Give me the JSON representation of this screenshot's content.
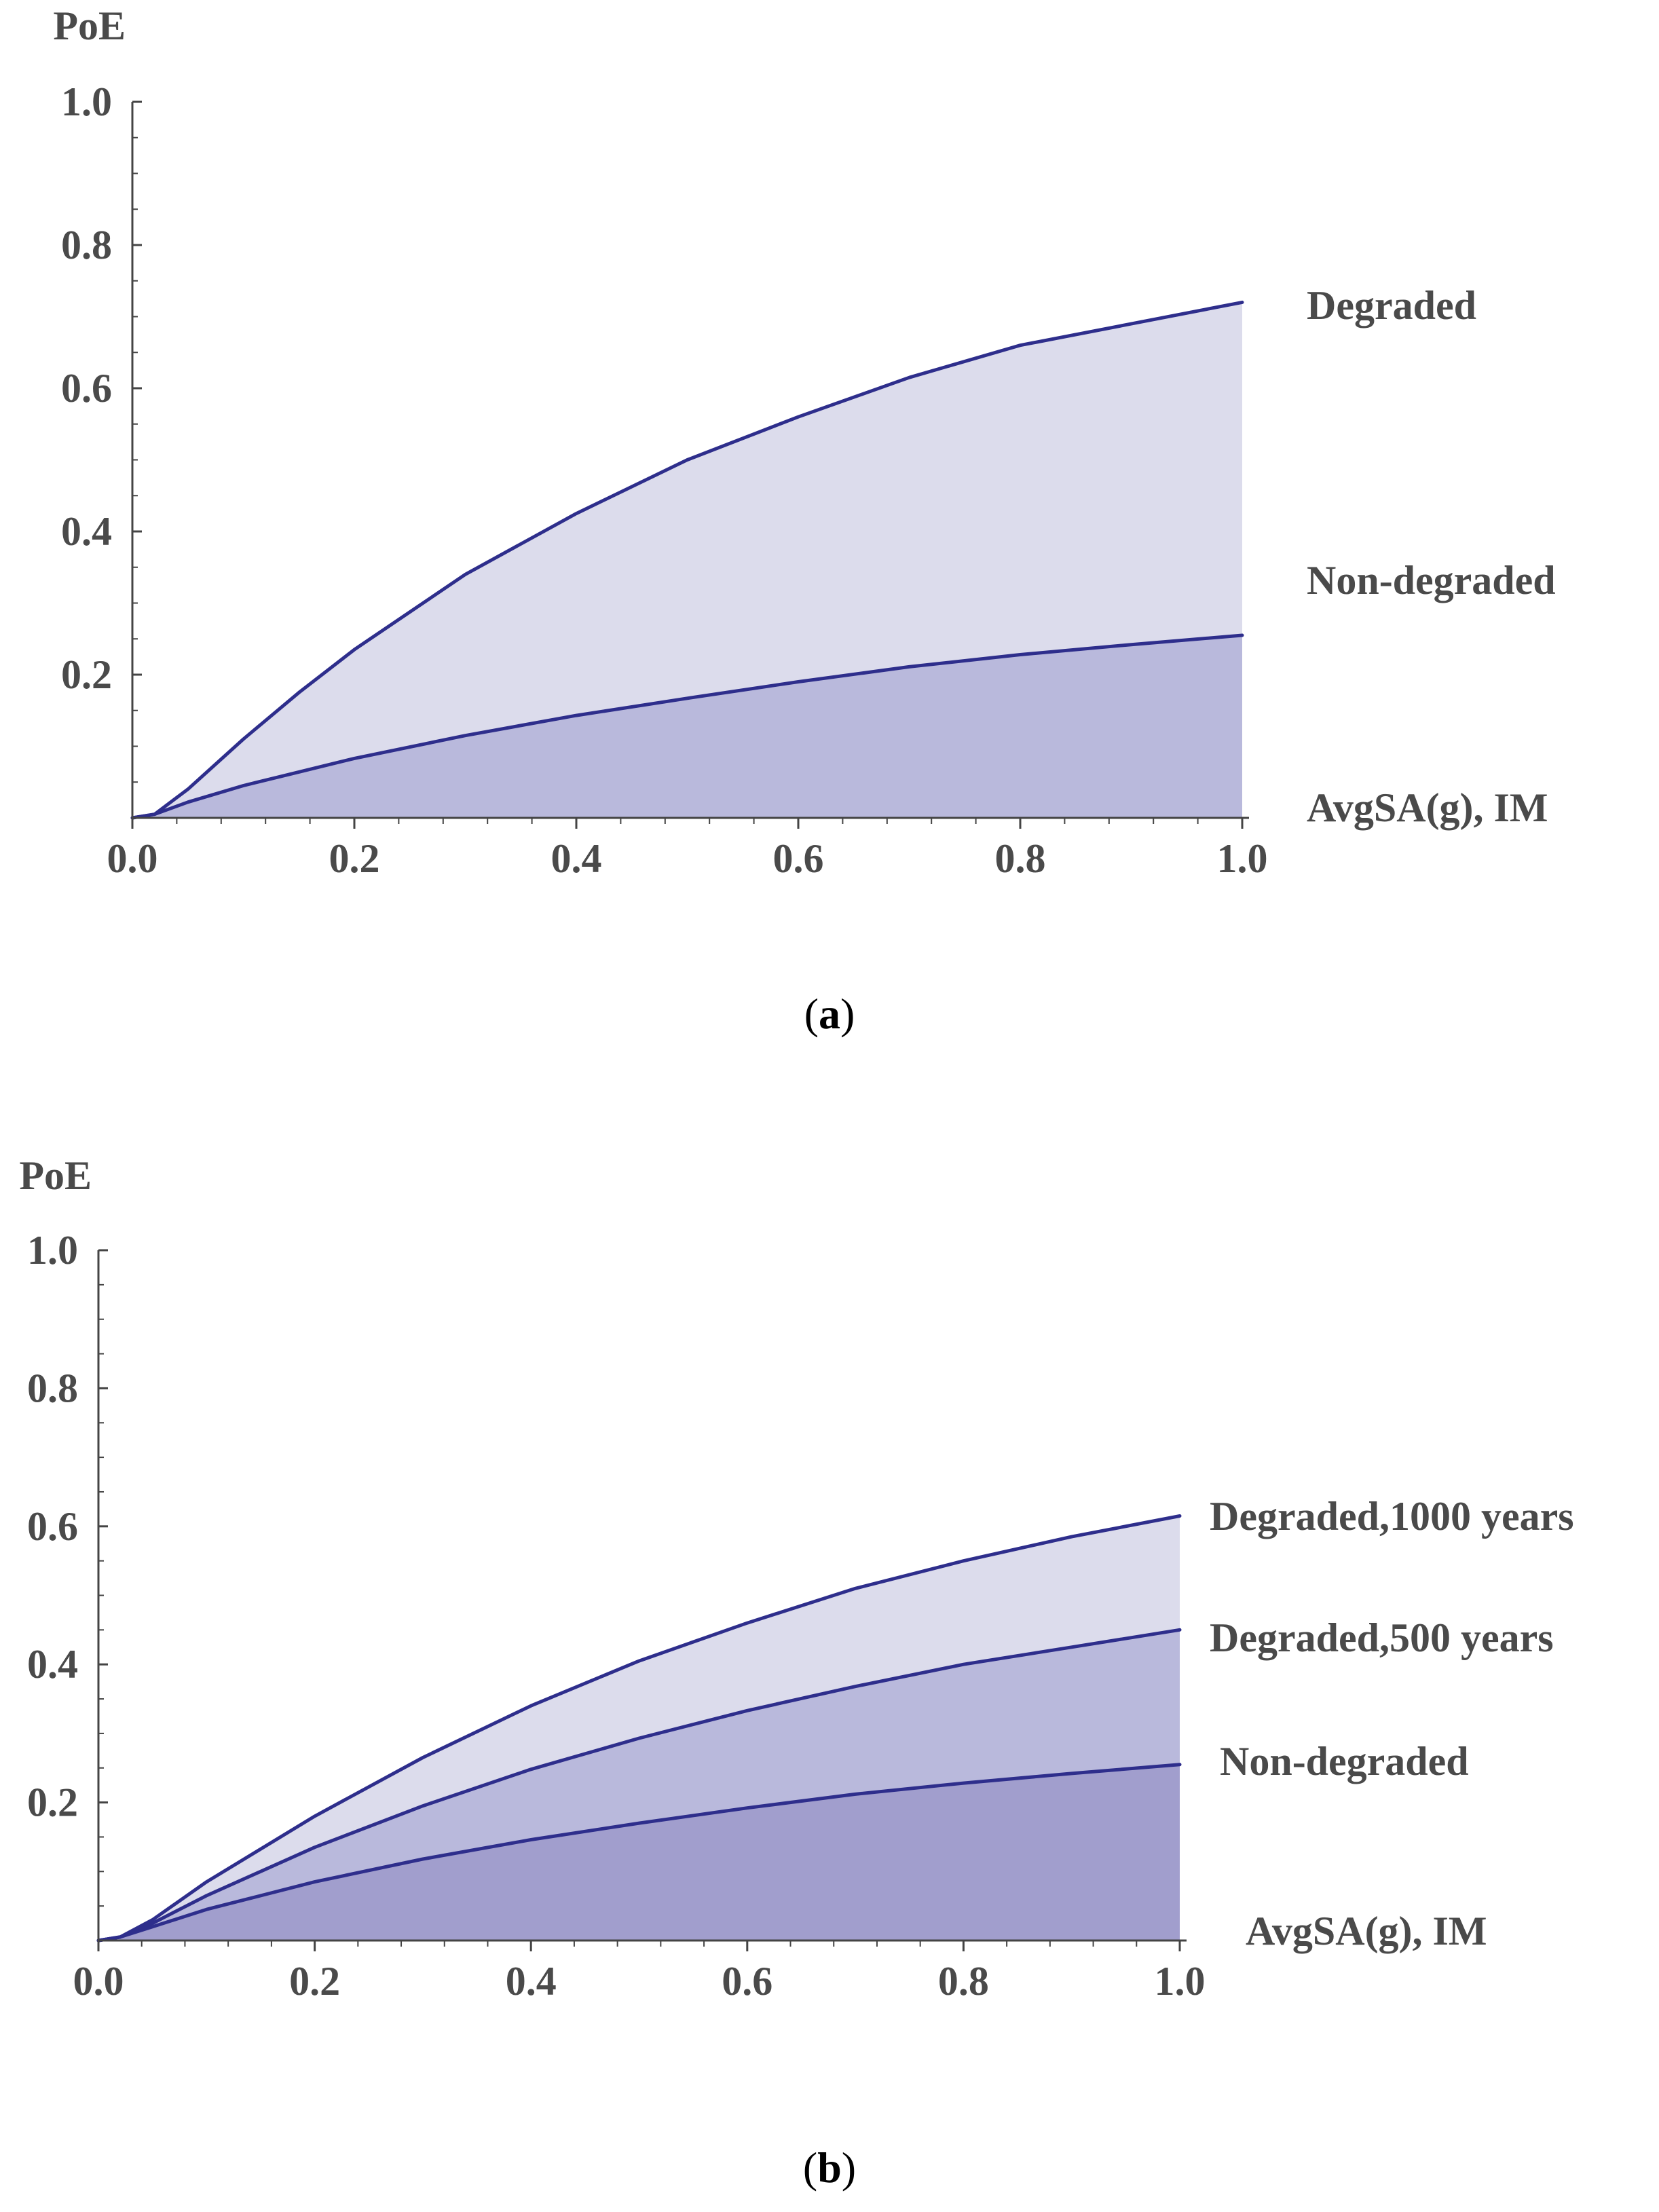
{
  "colors": {
    "line": "#2e2e8c",
    "fill_light": "#dcdcec",
    "fill_mid": "#b9b9dc",
    "fill_dark": "#a19ecd",
    "text": "#4a4a4a"
  },
  "chart_data": [
    {
      "id": "a",
      "type": "area",
      "caption": "(a)",
      "caption_letter": "a",
      "xlabel": "AvgSA(g), IM",
      "ylabel": "PoE",
      "xlim": [
        0.0,
        1.0
      ],
      "ylim": [
        0.0,
        1.0
      ],
      "xticks": [
        "0.0",
        "0.2",
        "0.4",
        "0.6",
        "0.8",
        "1.0"
      ],
      "yticks": [
        "0.2",
        "0.4",
        "0.6",
        "0.8",
        "1.0"
      ],
      "series": [
        {
          "name": "Degraded",
          "x": [
            0.0,
            0.02,
            0.05,
            0.1,
            0.15,
            0.2,
            0.3,
            0.4,
            0.5,
            0.6,
            0.7,
            0.8,
            0.9,
            1.0
          ],
          "values": [
            0.0,
            0.005,
            0.04,
            0.11,
            0.175,
            0.235,
            0.34,
            0.425,
            0.5,
            0.56,
            0.615,
            0.66,
            0.69,
            0.72
          ]
        },
        {
          "name": "Non-degraded",
          "x": [
            0.0,
            0.02,
            0.05,
            0.1,
            0.2,
            0.3,
            0.4,
            0.5,
            0.6,
            0.7,
            0.8,
            0.9,
            1.0
          ],
          "values": [
            0.0,
            0.005,
            0.022,
            0.045,
            0.083,
            0.115,
            0.143,
            0.167,
            0.19,
            0.211,
            0.228,
            0.242,
            0.255
          ]
        }
      ]
    },
    {
      "id": "b",
      "type": "area",
      "caption": "(b)",
      "caption_letter": "b",
      "xlabel": "AvgSA(g), IM",
      "ylabel": "PoE",
      "xlim": [
        0.0,
        1.0
      ],
      "ylim": [
        0.0,
        1.0
      ],
      "xticks": [
        "0.0",
        "0.2",
        "0.4",
        "0.6",
        "0.8",
        "1.0"
      ],
      "yticks": [
        "0.2",
        "0.4",
        "0.6",
        "0.8",
        "1.0"
      ],
      "series": [
        {
          "name": "Degraded,1000 years",
          "x": [
            0.0,
            0.02,
            0.05,
            0.1,
            0.2,
            0.3,
            0.4,
            0.5,
            0.6,
            0.7,
            0.8,
            0.9,
            1.0
          ],
          "values": [
            0.0,
            0.005,
            0.03,
            0.085,
            0.18,
            0.265,
            0.34,
            0.405,
            0.46,
            0.51,
            0.55,
            0.585,
            0.615
          ]
        },
        {
          "name": "Degraded,500 years",
          "x": [
            0.0,
            0.02,
            0.05,
            0.1,
            0.2,
            0.3,
            0.4,
            0.5,
            0.6,
            0.7,
            0.8,
            0.9,
            1.0
          ],
          "values": [
            0.0,
            0.005,
            0.025,
            0.065,
            0.135,
            0.195,
            0.248,
            0.293,
            0.333,
            0.368,
            0.4,
            0.425,
            0.45
          ]
        },
        {
          "name": "Non-degraded",
          "x": [
            0.0,
            0.02,
            0.05,
            0.1,
            0.2,
            0.3,
            0.4,
            0.5,
            0.6,
            0.7,
            0.8,
            0.9,
            1.0
          ],
          "values": [
            0.0,
            0.005,
            0.02,
            0.045,
            0.085,
            0.118,
            0.146,
            0.17,
            0.192,
            0.212,
            0.228,
            0.242,
            0.255
          ]
        }
      ]
    }
  ]
}
